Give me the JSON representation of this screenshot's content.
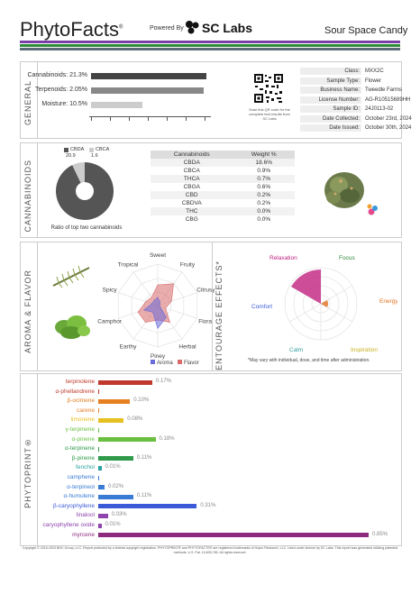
{
  "header": {
    "brand": "PhytoFacts",
    "brand_mark": "®",
    "powered_by": "Powered By",
    "lab_logo": "SC Labs",
    "product_name": "Sour Space Candy"
  },
  "colors": {
    "stripe_top": "#7a3fa6",
    "stripe_mid": "#2e8b3a",
    "stripe_bottom": "#5b6a78"
  },
  "general": {
    "section_label": "GENERAL",
    "bars": [
      {
        "label": "Cannabinoids: 21.3%",
        "fraction": 0.85,
        "color": "#444444"
      },
      {
        "label": "Terpenoids: 2.05%",
        "fraction": 0.83,
        "color": "#888888"
      },
      {
        "label": "Moisture: 10.5%",
        "fraction": 0.38,
        "color": "#cccccc"
      }
    ],
    "qr_caption": "Scan this QR code for the complete test results from SC Labs",
    "details": [
      {
        "key": "Class:",
        "value": "MXX2C"
      },
      {
        "key": "Sample Type:",
        "value": "Flower"
      },
      {
        "key": "Business Name:",
        "value": "Tweedle Farms"
      },
      {
        "key": "License Number:",
        "value": "AG-R10515689HH"
      },
      {
        "key": "Sample ID:",
        "value": "24J0113-02"
      },
      {
        "key": "Date Collected:",
        "value": "October 23rd, 2024"
      },
      {
        "key": "Date Issued:",
        "value": "October 30th, 2024"
      }
    ]
  },
  "cannabinoids": {
    "section_label": "CANNABINOIDS",
    "legend": [
      {
        "name": "CBDA",
        "value": "20.9",
        "color": "#555555"
      },
      {
        "name": "CBCA",
        "value": "1.6",
        "color": "#cccccc"
      }
    ],
    "pie_caption": "Ratio of top two cannabinoids",
    "table_headers": [
      "Cannabinoids",
      "Weight %"
    ],
    "rows": [
      [
        "CBDA",
        "18.6%"
      ],
      [
        "CBCA",
        "0.9%"
      ],
      [
        "THCA",
        "0.7%"
      ],
      [
        "CBGA",
        "0.6%"
      ],
      [
        "CBD",
        "0.2%"
      ],
      [
        "CBDVA",
        "0.2%"
      ],
      [
        "THC",
        "0.0%"
      ],
      [
        "CBG",
        "0.0%"
      ]
    ]
  },
  "aroma": {
    "section_label": "AROMA & FLAVOR",
    "axes": [
      "Sweet",
      "Fruity",
      "Citrusy",
      "Floral",
      "Herbal",
      "Piney",
      "Earthy",
      "Camphor",
      "Spicy",
      "Tropical"
    ],
    "legend": [
      {
        "name": "Aroma",
        "color": "#6a6ad8"
      },
      {
        "name": "Flavor",
        "color": "#d86a6a"
      }
    ]
  },
  "entourage": {
    "section_label": "ENTOURAGE EFFECTS*",
    "axes": [
      "Focus",
      "Energy",
      "Inspiration",
      "Calm",
      "Comfort",
      "Relaxation"
    ],
    "axis_colors": [
      "#2e8b3a",
      "#e07020",
      "#c8b020",
      "#3aa0a0",
      "#3a5ad8",
      "#c02080"
    ],
    "note": "*May vary with individual, dose, and time after administration."
  },
  "phytoprint": {
    "section_label": "PHYTOPRINT®",
    "items": [
      {
        "name": "terpinolene",
        "value": "0.17%",
        "v": 0.17,
        "color": "#c0392b"
      },
      {
        "name": "α-phellandrene",
        "value": "",
        "v": 0.0,
        "color": "#c0392b"
      },
      {
        "name": "β-ocimene",
        "value": "0.10%",
        "v": 0.1,
        "color": "#e67e22"
      },
      {
        "name": "carene",
        "value": "",
        "v": 0.0,
        "color": "#e67e22"
      },
      {
        "name": "limonene",
        "value": "0.08%",
        "v": 0.08,
        "color": "#e6c020"
      },
      {
        "name": "γ-terpinene",
        "value": "",
        "v": 0.0,
        "color": "#6abf40"
      },
      {
        "name": "α-pinene",
        "value": "0.18%",
        "v": 0.18,
        "color": "#6abf40"
      },
      {
        "name": "α-terpinene",
        "value": "",
        "v": 0.0,
        "color": "#2e9a4a"
      },
      {
        "name": "β-pinene",
        "value": "0.11%",
        "v": 0.11,
        "color": "#2e9a4a"
      },
      {
        "name": "fenchol",
        "value": "0.01%",
        "v": 0.01,
        "color": "#2aa0a0"
      },
      {
        "name": "camphene",
        "value": "",
        "v": 0.0,
        "color": "#3a7bd5"
      },
      {
        "name": "α-terpineol",
        "value": "0.02%",
        "v": 0.02,
        "color": "#3a7bd5"
      },
      {
        "name": "α-humulene",
        "value": "0.11%",
        "v": 0.11,
        "color": "#3a7bd5"
      },
      {
        "name": "β-caryophyllene",
        "value": "0.31%",
        "v": 0.31,
        "color": "#3a5ad8"
      },
      {
        "name": "linalool",
        "value": "0.03%",
        "v": 0.03,
        "color": "#8e44ad"
      },
      {
        "name": "caryophyllene oxide",
        "value": "0.01%",
        "v": 0.01,
        "color": "#8e44ad"
      },
      {
        "name": "myrcene",
        "value": "0.85%",
        "v": 0.85,
        "color": "#8e2a80"
      }
    ]
  },
  "footer": {
    "text": "Copyright © 2015-2023 BHC Group, LLC. Report protected by a federal copyright registration. PHYTOPRINT® and PHYTOFACTS® are registered trademarks of Hopro Research, LLC. Used under license by SC Labs. This report was generated utilizing patented methods. U.S. Pat. 10,830,780. All rights reserved."
  }
}
